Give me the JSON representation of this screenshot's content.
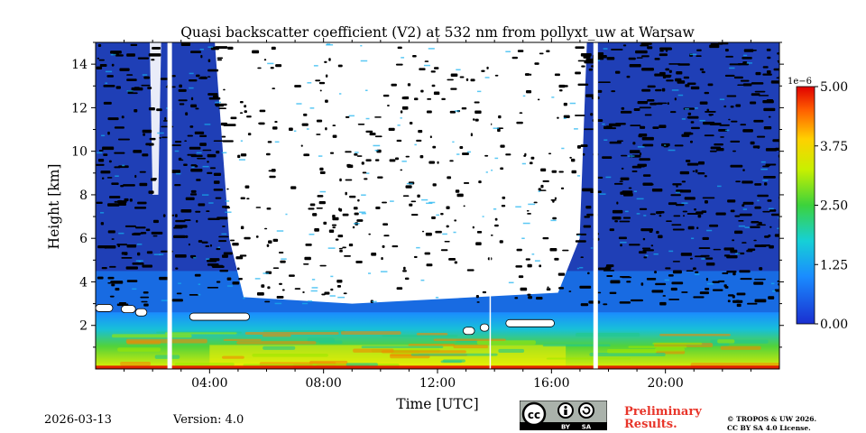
{
  "chart_data": {
    "type": "heatmap",
    "title": "Quasi backscatter coefficient (V2) at 532 nm from pollyxt_uw at Warsaw",
    "xlabel": "Time [UTC]",
    "ylabel": "Height [km]",
    "xlim_hours": [
      0,
      24
    ],
    "ylim_km": [
      0,
      15
    ],
    "x_ticks": [
      {
        "hour": 4,
        "label": "04:00"
      },
      {
        "hour": 8,
        "label": "08:00"
      },
      {
        "hour": 12,
        "label": "12:00"
      },
      {
        "hour": 16,
        "label": "16:00"
      },
      {
        "hour": 20,
        "label": "20:00"
      }
    ],
    "y_ticks": [
      {
        "value": 2,
        "label": "2"
      },
      {
        "value": 4,
        "label": "4"
      },
      {
        "value": 6,
        "label": "6"
      },
      {
        "value": 8,
        "label": "8"
      },
      {
        "value": 10,
        "label": "10"
      },
      {
        "value": 12,
        "label": "12"
      },
      {
        "value": 14,
        "label": "14"
      }
    ],
    "colorbar": {
      "range": [
        0,
        5e-06
      ],
      "exponent_label": "1e−6",
      "ticks": [
        {
          "value": 0.0,
          "label": "0.00"
        },
        {
          "value": 1.25,
          "label": "1.25"
        },
        {
          "value": 2.5,
          "label": "2.50"
        },
        {
          "value": 3.75,
          "label": "3.75"
        },
        {
          "value": 5.0,
          "label": "5.00"
        }
      ]
    },
    "data_gaps_hours": [
      2.6,
      13.85,
      17.55
    ],
    "clouds": [
      {
        "start_hour": 0.0,
        "end_hour": 0.6,
        "height_km": 2.8
      },
      {
        "start_hour": 0.9,
        "end_hour": 1.4,
        "height_km": 2.75
      },
      {
        "start_hour": 1.4,
        "end_hour": 1.8,
        "height_km": 2.6
      },
      {
        "start_hour": 3.3,
        "end_hour": 5.4,
        "height_km": 2.4
      },
      {
        "start_hour": 12.9,
        "end_hour": 13.3,
        "height_km": 1.75
      },
      {
        "start_hour": 13.5,
        "end_hour": 13.8,
        "height_km": 1.9
      },
      {
        "start_hour": 14.4,
        "end_hour": 16.1,
        "height_km": 2.1
      }
    ],
    "clear_region": {
      "start_hour": 4.5,
      "end_hour": 16.8,
      "base_km": 3.5
    }
  },
  "colors": {
    "low": "#1f3fb6",
    "mid": "#1aa3ff",
    "green": "#3cc83c",
    "yellow": "#f5f000",
    "high": "#e00000"
  },
  "footer": {
    "date": "2026-03-13",
    "version": "Version: 4.0",
    "prelim_line1": "Preliminary",
    "prelim_line2": "Results.",
    "copyright_line1": "© TROPOS & UW 2026.",
    "copyright_line2": "CC BY SA 4.0 License.",
    "cc_by": "BY",
    "cc_sa": "SA"
  }
}
